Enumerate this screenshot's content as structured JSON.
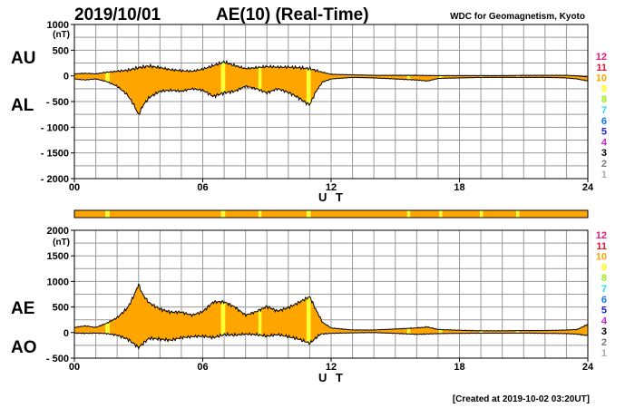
{
  "header": {
    "date": "2019/10/01",
    "title": "AE(10) (Real-Time)",
    "source": "WDC for Geomagnetism, Kyoto"
  },
  "footer": {
    "created": "[Created at 2019-10-02 03:20UT]"
  },
  "colors": {
    "fill": "#ffa500",
    "highlight": "#ffff33",
    "line": "#000000"
  },
  "legend": [
    {
      "label": "12",
      "color": "#e8187a"
    },
    {
      "label": "11",
      "color": "#e8152b"
    },
    {
      "label": "10",
      "color": "#ffa500"
    },
    {
      "label": "9",
      "color": "#ffff00"
    },
    {
      "label": "8",
      "color": "#99ee11"
    },
    {
      "label": "7",
      "color": "#22dddd"
    },
    {
      "label": "6",
      "color": "#1177ee"
    },
    {
      "label": "5",
      "color": "#2222cc"
    },
    {
      "label": "4",
      "color": "#cc22cc"
    },
    {
      "label": "3",
      "color": "#000000"
    },
    {
      "label": "2",
      "color": "#777777"
    },
    {
      "label": "1",
      "color": "#aaaaaa"
    }
  ],
  "chart_data": [
    {
      "type": "area",
      "upper_label": "AU",
      "lower_label": "AL",
      "ylabel": "(nT)",
      "ylim": [
        -2000,
        1000
      ],
      "yticks": [
        "1000",
        "500",
        "0",
        "- 500",
        "- 1000",
        "- 1500",
        "- 2000"
      ],
      "ytick_values": [
        1000,
        500,
        0,
        -500,
        -1000,
        -1500,
        -2000
      ],
      "xlim": [
        0,
        24
      ],
      "xticks": [
        "00",
        "06",
        "12",
        "18",
        "24"
      ],
      "xtick_values": [
        0,
        6,
        12,
        18,
        24
      ],
      "xlabel": "U T",
      "series": [
        {
          "x": [
            0,
            0.5,
            1,
            1.5,
            2,
            2.5,
            3,
            3.5,
            4,
            4.5,
            5,
            5.5,
            6,
            6.5,
            7,
            7.5,
            8,
            8.5,
            9,
            9.5,
            10,
            10.5,
            11,
            11.5,
            12,
            13,
            14,
            15,
            16,
            17,
            18,
            19,
            20,
            21,
            22,
            23,
            23.5,
            24
          ],
          "values": [
            40,
            50,
            40,
            70,
            90,
            110,
            160,
            190,
            160,
            120,
            100,
            90,
            130,
            200,
            270,
            200,
            140,
            160,
            180,
            170,
            170,
            160,
            140,
            80,
            30,
            20,
            10,
            10,
            10,
            5,
            5,
            5,
            5,
            10,
            10,
            10,
            0,
            -20
          ]
        },
        {
          "x": [
            0,
            0.5,
            1,
            1.5,
            2,
            2.5,
            2.8,
            3,
            3.2,
            3.5,
            4,
            4.5,
            5,
            5.5,
            6,
            6.5,
            7,
            7.5,
            8,
            8.5,
            9,
            9.5,
            10,
            10.5,
            10.8,
            11,
            11.3,
            11.6,
            12,
            13,
            14,
            15,
            16,
            16.5,
            17,
            18,
            19,
            20,
            21,
            22,
            23,
            23.5,
            24
          ],
          "values": [
            -60,
            -80,
            -60,
            -110,
            -200,
            -380,
            -580,
            -760,
            -580,
            -420,
            -300,
            -280,
            -300,
            -250,
            -280,
            -400,
            -330,
            -300,
            -200,
            -250,
            -330,
            -250,
            -320,
            -430,
            -520,
            -560,
            -300,
            -120,
            -60,
            -30,
            -40,
            -60,
            -80,
            -100,
            -50,
            -40,
            -30,
            -30,
            -30,
            -30,
            -40,
            -60,
            -100
          ]
        }
      ]
    },
    {
      "type": "area",
      "upper_label": "AE",
      "lower_label": "AO",
      "ylabel": "(nT)",
      "ylim": [
        -500,
        2000
      ],
      "yticks": [
        "2000",
        "1500",
        "1000",
        "500",
        "0",
        "- 500"
      ],
      "ytick_values": [
        2000,
        1500,
        1000,
        500,
        0,
        -500
      ],
      "xlim": [
        0,
        24
      ],
      "xticks": [
        "00",
        "06",
        "12",
        "18",
        "24"
      ],
      "xtick_values": [
        0,
        6,
        12,
        18,
        24
      ],
      "xlabel": "U T",
      "series": [
        {
          "x": [
            0,
            0.5,
            1,
            1.5,
            2,
            2.5,
            2.8,
            3,
            3.2,
            3.5,
            4,
            4.5,
            5,
            5.5,
            6,
            6.5,
            7,
            7.5,
            8,
            8.5,
            9,
            9.5,
            10,
            10.5,
            10.8,
            11,
            11.3,
            11.6,
            12,
            13,
            14,
            15,
            16,
            16.5,
            17,
            18,
            19,
            20,
            21,
            22,
            23,
            23.5,
            24
          ],
          "values": [
            100,
            130,
            100,
            180,
            290,
            490,
            740,
            940,
            740,
            580,
            460,
            400,
            400,
            340,
            410,
            600,
            600,
            500,
            340,
            410,
            510,
            420,
            490,
            590,
            660,
            700,
            440,
            200,
            90,
            50,
            50,
            70,
            90,
            110,
            60,
            45,
            35,
            35,
            40,
            40,
            50,
            60,
            160
          ]
        },
        {
          "x": [
            0,
            0.5,
            1,
            1.5,
            2,
            2.5,
            3,
            3.5,
            4,
            4.5,
            5,
            5.5,
            6,
            6.5,
            7,
            7.5,
            8,
            8.5,
            9,
            9.5,
            10,
            10.5,
            11,
            11.5,
            12,
            13,
            14,
            15,
            16,
            17,
            18,
            19,
            20,
            21,
            22,
            23,
            23.5,
            24
          ],
          "values": [
            -10,
            -15,
            -10,
            -20,
            -50,
            -130,
            -290,
            -110,
            -130,
            -150,
            -100,
            -80,
            -70,
            -100,
            -40,
            -50,
            -30,
            -40,
            -70,
            -40,
            -80,
            -130,
            -210,
            -30,
            -15,
            -5,
            0,
            -15,
            -35,
            -20,
            -15,
            -12,
            -12,
            -10,
            -15,
            -20,
            -30,
            -60
          ]
        }
      ]
    }
  ],
  "band": {
    "x": [
      0,
      1.2,
      1.7,
      3.5,
      3.8,
      4.8,
      7.0,
      7.2,
      8.5,
      8.7,
      9.6,
      9.8,
      10.3,
      10.5,
      10.8,
      11.0,
      15.5,
      15.7,
      17.0,
      17.2,
      18.9,
      19.1,
      20.6,
      20.8,
      24
    ],
    "highlight_ranges": [
      [
        1.45,
        1.65
      ],
      [
        6.85,
        7.05
      ],
      [
        8.6,
        8.75
      ],
      [
        10.85,
        11.05
      ],
      [
        15.55,
        15.7
      ],
      [
        17.05,
        17.2
      ],
      [
        18.95,
        19.1
      ],
      [
        20.65,
        20.8
      ]
    ]
  },
  "highlight_ranges": [
    [
      1.45,
      1.65
    ],
    [
      6.85,
      7.05
    ],
    [
      8.6,
      8.75
    ],
    [
      10.85,
      11.05
    ],
    [
      15.55,
      15.7
    ],
    [
      17.05,
      17.2
    ],
    [
      18.95,
      19.1
    ],
    [
      20.65,
      20.8
    ]
  ]
}
